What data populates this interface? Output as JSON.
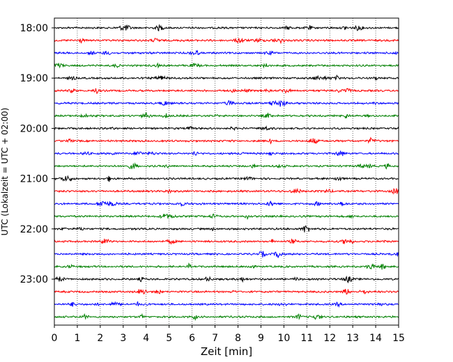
{
  "chart_data": {
    "type": "line",
    "title": "",
    "xlabel": "Zeit  [min]",
    "ylabel": "UTC (Lokalzeit = UTC + 02:00)",
    "xlim": [
      0,
      15
    ],
    "x_ticks": [
      "0",
      "1",
      "2",
      "3",
      "4",
      "5",
      "6",
      "7",
      "8",
      "9",
      "10",
      "11",
      "12",
      "13",
      "14",
      "15"
    ],
    "y_ticks": [
      "18:00",
      "19:00",
      "20:00",
      "21:00",
      "22:00",
      "23:00"
    ],
    "grid": "vertical-dotted",
    "trace_colors": [
      "#000000",
      "#ff0000",
      "#0000ff",
      "#008000"
    ],
    "traces": [
      {
        "start": "18:00",
        "color": "#000000"
      },
      {
        "start": "18:15",
        "color": "#ff0000"
      },
      {
        "start": "18:30",
        "color": "#0000ff"
      },
      {
        "start": "18:45",
        "color": "#008000"
      },
      {
        "start": "19:00",
        "color": "#000000"
      },
      {
        "start": "19:15",
        "color": "#ff0000"
      },
      {
        "start": "19:30",
        "color": "#0000ff"
      },
      {
        "start": "19:45",
        "color": "#008000"
      },
      {
        "start": "20:00",
        "color": "#000000"
      },
      {
        "start": "20:15",
        "color": "#ff0000"
      },
      {
        "start": "20:30",
        "color": "#0000ff"
      },
      {
        "start": "20:45",
        "color": "#008000"
      },
      {
        "start": "21:00",
        "color": "#000000"
      },
      {
        "start": "21:15",
        "color": "#ff0000"
      },
      {
        "start": "21:30",
        "color": "#0000ff"
      },
      {
        "start": "21:45",
        "color": "#008000"
      },
      {
        "start": "22:00",
        "color": "#000000"
      },
      {
        "start": "22:15",
        "color": "#ff0000"
      },
      {
        "start": "22:30",
        "color": "#0000ff"
      },
      {
        "start": "22:45",
        "color": "#008000"
      },
      {
        "start": "23:00",
        "color": "#000000"
      },
      {
        "start": "23:15",
        "color": "#ff0000"
      },
      {
        "start": "23:30",
        "color": "#0000ff"
      },
      {
        "start": "23:45",
        "color": "#008000"
      }
    ]
  }
}
